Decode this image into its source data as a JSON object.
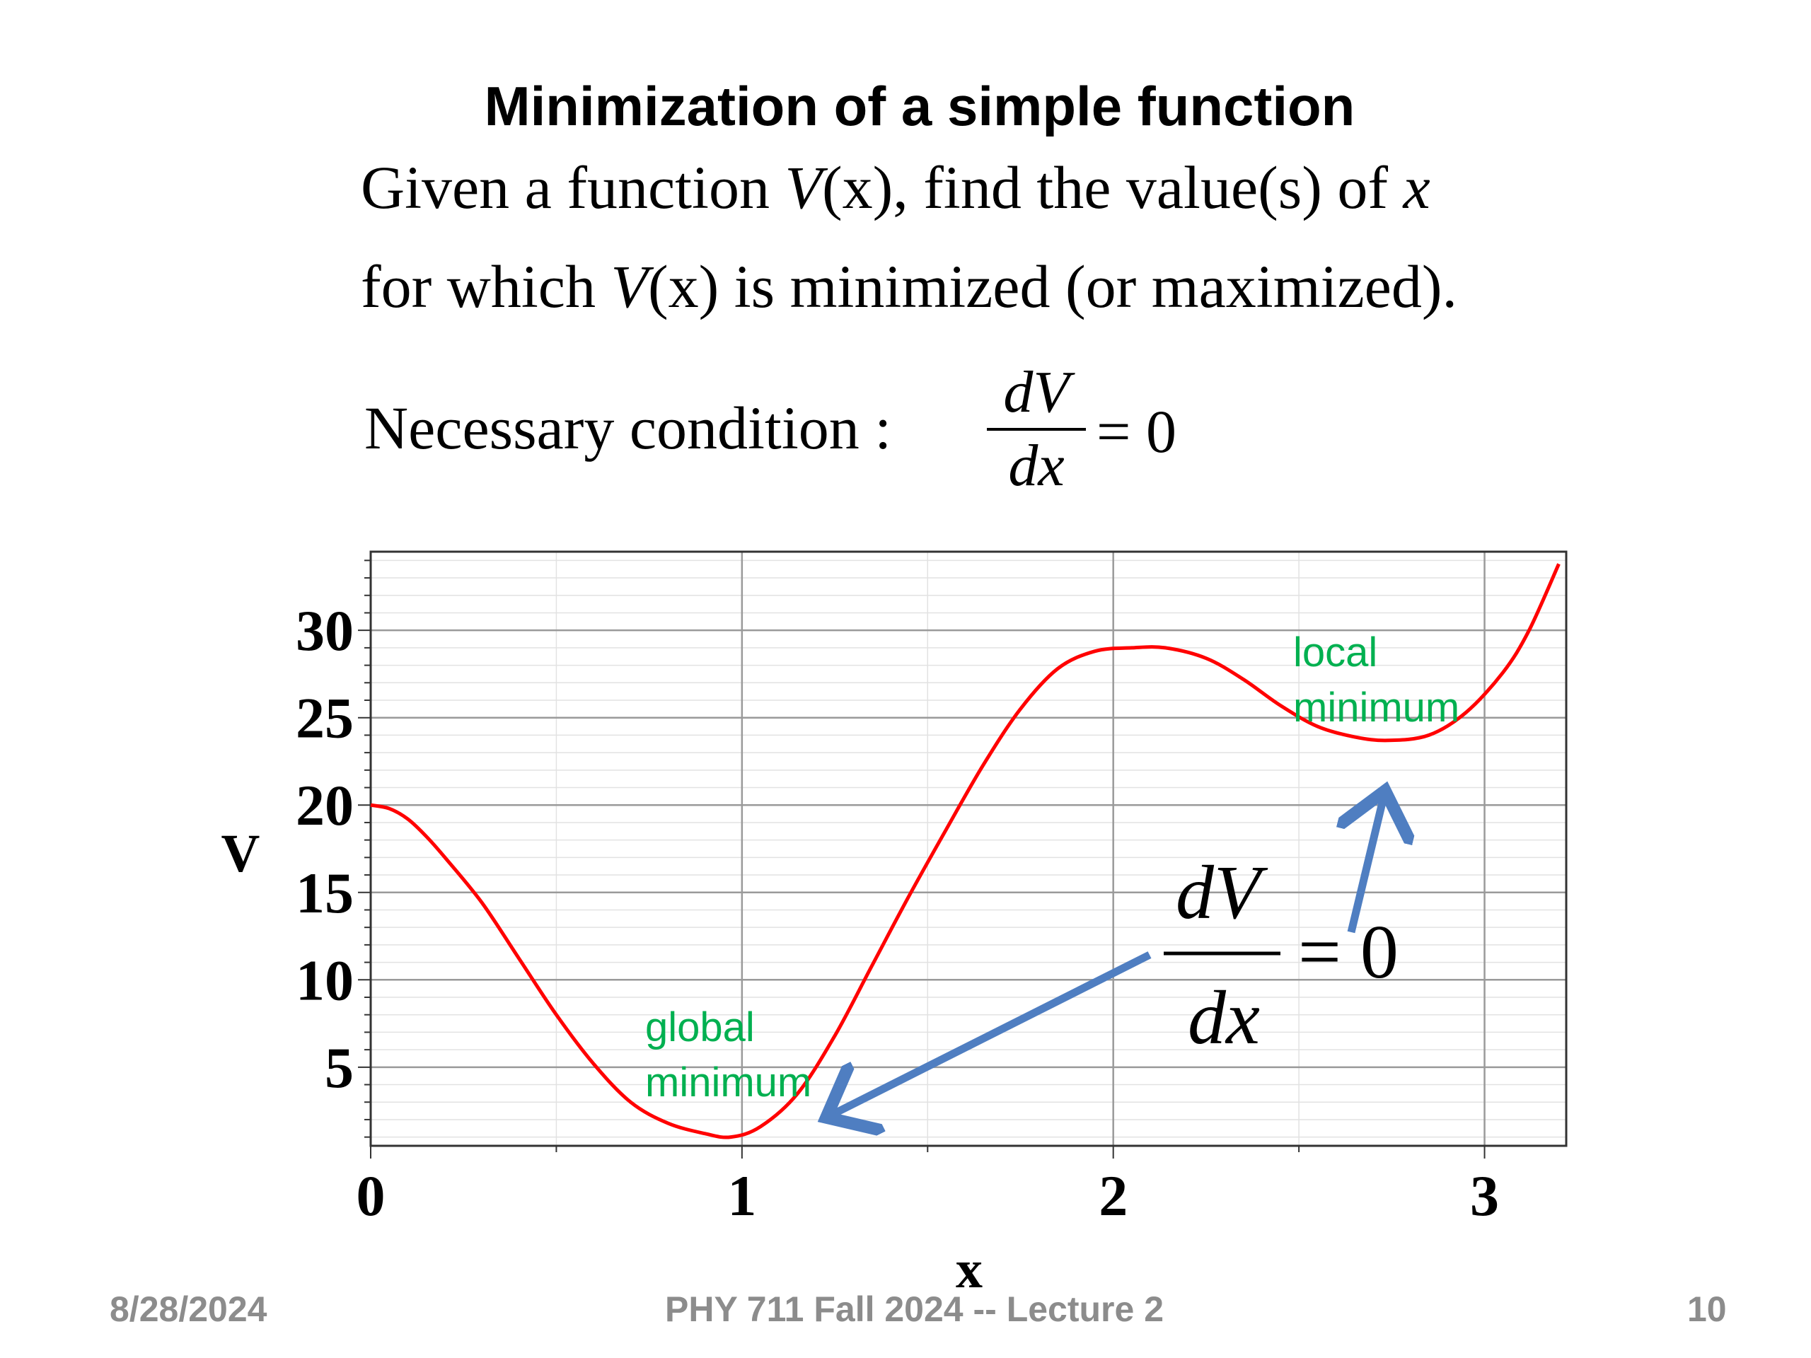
{
  "slide": {
    "title": "Minimization of a simple function",
    "line1_pre": "Given a function ",
    "line1_V": "V",
    "line1_arg": "(x)",
    "line1_post": ", find the value(s) of ",
    "line1_x": "x",
    "line2_pre": "for which ",
    "line2_V": "V",
    "line2_arg": "(x)",
    "line2_post": " is minimized (or maximized).",
    "condition_label": "Necessary condition :",
    "deriv_num": "dV",
    "deriv_den": "dx",
    "deriv_eq": "= 0"
  },
  "chart_data": {
    "type": "line",
    "xlabel": "x",
    "ylabel": "V",
    "xlim": [
      0,
      3.22
    ],
    "ylim": [
      0.5,
      34.5
    ],
    "xticks": [
      0,
      1,
      2,
      3
    ],
    "xtick_labels": [
      "0",
      "1",
      "2",
      "3"
    ],
    "yticks": [
      5,
      10,
      15,
      20,
      25,
      30
    ],
    "ytick_labels": [
      "5",
      "10",
      "15",
      "20",
      "25",
      "30"
    ],
    "grid": true,
    "series": [
      {
        "color": "#ff0000",
        "x": [
          0,
          0.05,
          0.1,
          0.15,
          0.2,
          0.3,
          0.4,
          0.5,
          0.6,
          0.7,
          0.8,
          0.9,
          0.97,
          1.05,
          1.15,
          1.25,
          1.35,
          1.45,
          1.55,
          1.65,
          1.75,
          1.85,
          1.95,
          2.05,
          2.14,
          2.25,
          2.35,
          2.45,
          2.55,
          2.65,
          2.74,
          2.85,
          2.95,
          3.05,
          3.12,
          3.2
        ],
        "y": [
          20.0,
          19.8,
          19.2,
          18.2,
          17.0,
          14.4,
          11.2,
          8.0,
          5.2,
          3.0,
          1.8,
          1.2,
          1.0,
          1.6,
          3.5,
          6.8,
          10.8,
          14.8,
          18.6,
          22.3,
          25.5,
          27.8,
          28.8,
          29.0,
          29.0,
          28.4,
          27.2,
          25.7,
          24.5,
          23.9,
          23.7,
          24.0,
          25.3,
          27.6,
          30.0,
          33.8
        ]
      }
    ],
    "annotations": [
      {
        "text_lines": [
          "global",
          "minimum"
        ],
        "color": "#00b050"
      },
      {
        "text_lines": [
          "local",
          "minimum"
        ],
        "color": "#00b050"
      }
    ],
    "arrow_color": "#4f7ec1",
    "callout": {
      "num": "dV",
      "den": "dx",
      "eq": "= 0"
    }
  },
  "footer": {
    "date": "8/28/2024",
    "course": "PHY 711  Fall 2024 -- Lecture 2",
    "page": "10"
  }
}
